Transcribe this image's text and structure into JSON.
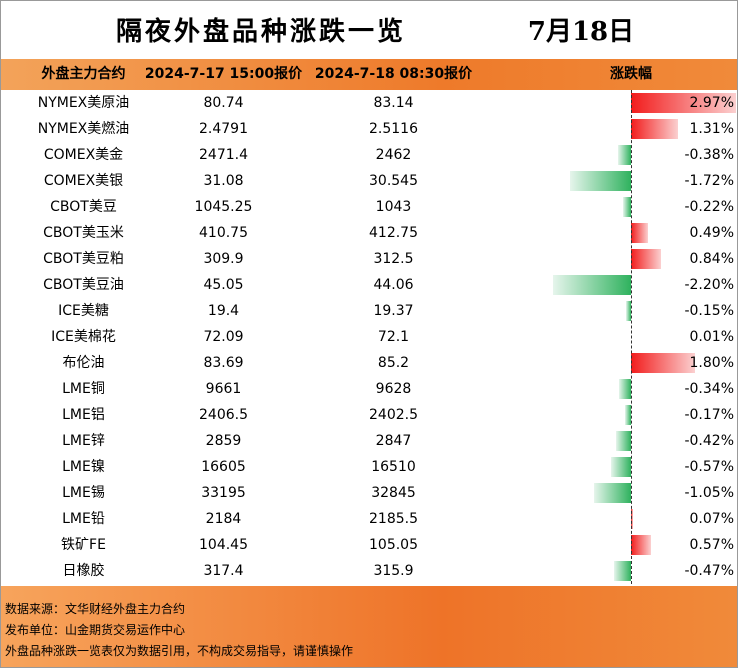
{
  "header": {
    "title": "隔夜外盘品种涨跌一览",
    "date": "7月18日"
  },
  "table": {
    "columns": [
      "外盘主力合约",
      "2024-7-17 15:00报价",
      "2024-7-18 08:30报价",
      "涨跌幅"
    ],
    "rows": [
      {
        "contract": "NYMEX美原油",
        "prev": "80.74",
        "curr": "83.14",
        "change": {
          "value": 2.97,
          "label": "2.97%"
        }
      },
      {
        "contract": "NYMEX美燃油",
        "prev": "2.4791",
        "curr": "2.5116",
        "change": {
          "value": 1.31,
          "label": "1.31%"
        }
      },
      {
        "contract": "COMEX美金",
        "prev": "2471.4",
        "curr": "2462",
        "change": {
          "value": -0.38,
          "label": "-0.38%"
        }
      },
      {
        "contract": "COMEX美银",
        "prev": "31.08",
        "curr": "30.545",
        "change": {
          "value": -1.72,
          "label": "-1.72%"
        }
      },
      {
        "contract": "CBOT美豆",
        "prev": "1045.25",
        "curr": "1043",
        "change": {
          "value": -0.22,
          "label": "-0.22%"
        }
      },
      {
        "contract": "CBOT美玉米",
        "prev": "410.75",
        "curr": "412.75",
        "change": {
          "value": 0.49,
          "label": "0.49%"
        }
      },
      {
        "contract": "CBOT美豆粕",
        "prev": "309.9",
        "curr": "312.5",
        "change": {
          "value": 0.84,
          "label": "0.84%"
        }
      },
      {
        "contract": "CBOT美豆油",
        "prev": "45.05",
        "curr": "44.06",
        "change": {
          "value": -2.2,
          "label": "-2.20%"
        }
      },
      {
        "contract": "ICE美糖",
        "prev": "19.4",
        "curr": "19.37",
        "change": {
          "value": -0.15,
          "label": "-0.15%"
        }
      },
      {
        "contract": "ICE美棉花",
        "prev": "72.09",
        "curr": "72.1",
        "change": {
          "value": 0.01,
          "label": "0.01%"
        }
      },
      {
        "contract": "布伦油",
        "prev": "83.69",
        "curr": "85.2",
        "change": {
          "value": 1.8,
          "label": "1.80%"
        }
      },
      {
        "contract": "LME铜",
        "prev": "9661",
        "curr": "9628",
        "change": {
          "value": -0.34,
          "label": "-0.34%"
        }
      },
      {
        "contract": "LME铝",
        "prev": "2406.5",
        "curr": "2402.5",
        "change": {
          "value": -0.17,
          "label": "-0.17%"
        }
      },
      {
        "contract": "LME锌",
        "prev": "2859",
        "curr": "2847",
        "change": {
          "value": -0.42,
          "label": "-0.42%"
        }
      },
      {
        "contract": "LME镍",
        "prev": "16605",
        "curr": "16510",
        "change": {
          "value": -0.57,
          "label": "-0.57%"
        }
      },
      {
        "contract": "LME锡",
        "prev": "33195",
        "curr": "32845",
        "change": {
          "value": -1.05,
          "label": "-1.05%"
        }
      },
      {
        "contract": "LME铅",
        "prev": "2184",
        "curr": "2185.5",
        "change": {
          "value": 0.07,
          "label": "0.07%"
        }
      },
      {
        "contract": "铁矿FE",
        "prev": "104.45",
        "curr": "105.05",
        "change": {
          "value": 0.57,
          "label": "0.57%"
        }
      },
      {
        "contract": "日橡胶",
        "prev": "317.4",
        "curr": "315.9",
        "change": {
          "value": -0.47,
          "label": "-0.47%"
        }
      }
    ]
  },
  "footer": [
    "数据来源：文华财经外盘主力合约",
    "发布单位：山金期货交易运作中心",
    "外盘品种涨跌一览表仅为数据引用，不构成交易指导，请谨慎操作"
  ]
}
